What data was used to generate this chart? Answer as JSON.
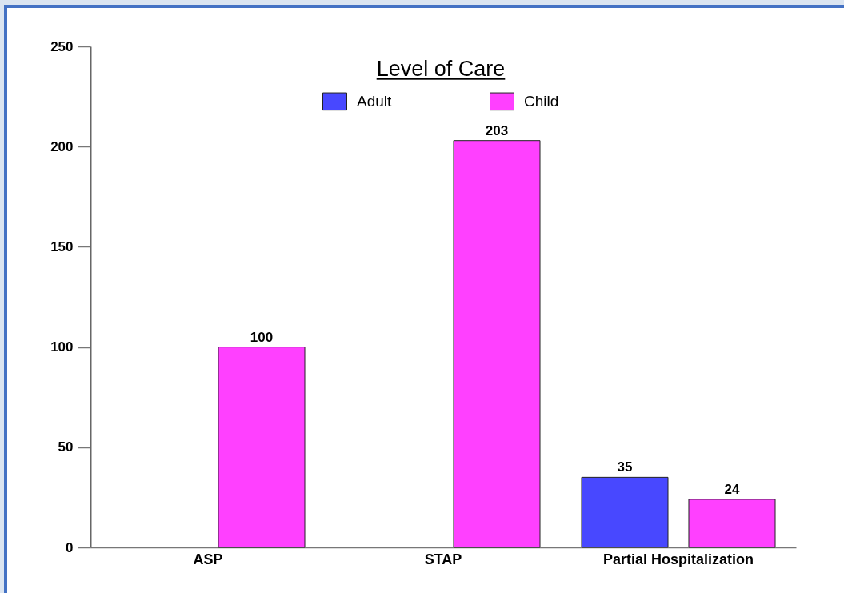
{
  "chart_data": {
    "type": "bar",
    "legend_title": "Level of Care",
    "categories": [
      "ASP",
      "STAP",
      "Partial Hospitalization"
    ],
    "series": [
      {
        "name": "Adult",
        "color": "#4848ff",
        "values": [
          null,
          null,
          35
        ]
      },
      {
        "name": "Child",
        "color": "#ff40ff",
        "values": [
          100,
          203,
          24
        ]
      }
    ],
    "ylim": [
      0,
      250
    ],
    "yticks": [
      0,
      50,
      100,
      150,
      200,
      250
    ],
    "data_labels": true,
    "legend": "top"
  }
}
